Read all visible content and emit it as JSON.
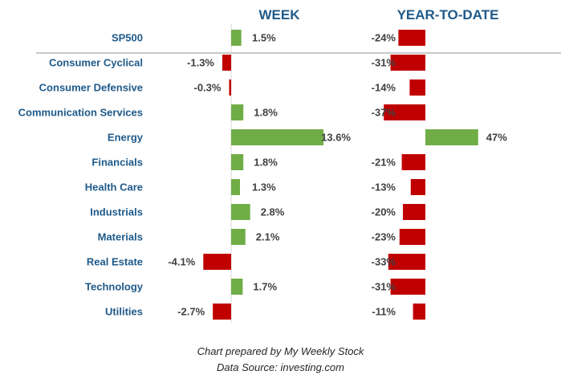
{
  "chart_data": {
    "type": "bar",
    "headers": {
      "week": "WEEK",
      "ytd": "YEAR-TO-DATE"
    },
    "categories": [
      "SP500",
      "Consumer Cyclical",
      "Consumer Defensive",
      "Communication Services",
      "Energy",
      "Financials",
      "Health Care",
      "Industrials",
      "Materials",
      "Real Estate",
      "Technology",
      "Utilities"
    ],
    "series": [
      {
        "name": "WEEK",
        "values": [
          1.5,
          -1.3,
          -0.3,
          1.8,
          13.6,
          1.8,
          1.3,
          2.8,
          2.1,
          -4.1,
          1.7,
          -2.7
        ],
        "labels": [
          "1.5%",
          "-1.3%",
          "-0.3%",
          "1.8%",
          "13.6%",
          "1.8%",
          "1.3%",
          "2.8%",
          "2.1%",
          "-4.1%",
          "1.7%",
          "-2.7%"
        ]
      },
      {
        "name": "YEAR-TO-DATE",
        "values": [
          -24,
          -31,
          -14,
          -37,
          47,
          -21,
          -13,
          -20,
          -23,
          -33,
          -31,
          -11
        ],
        "labels": [
          "-24%",
          "-31%",
          "-14%",
          "-37%",
          "47%",
          "-21%",
          "-13%",
          "-20%",
          "-23%",
          "-33%",
          "-31%",
          "-11%"
        ]
      }
    ],
    "colors": {
      "positive": "#70ad47",
      "negative": "#c00000",
      "category_text": "#1f5a8a",
      "value_text": "#404040"
    }
  },
  "footer": {
    "line1": "Chart prepared by My Weekly Stock",
    "line2": "Data Source: investing.com"
  }
}
